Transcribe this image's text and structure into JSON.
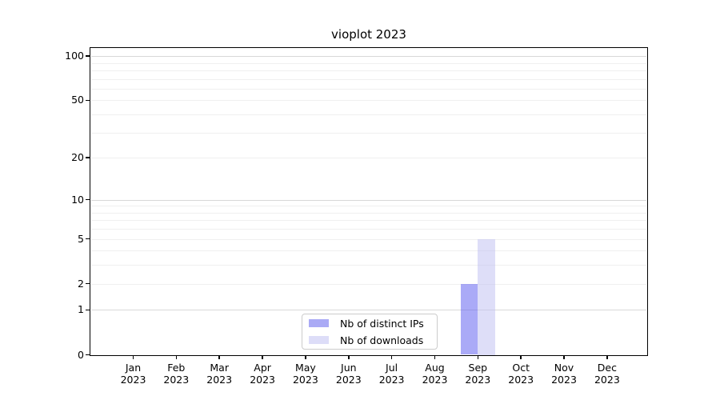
{
  "figure": {
    "title": "vioplot 2023"
  },
  "legend": {
    "items": [
      {
        "label": "Nb of distinct IPs",
        "color": "rgba(85,85,240,0.5)",
        "solid": "#aaaaf5"
      },
      {
        "label": "Nb of downloads",
        "color": "rgba(190,190,242,0.5)",
        "solid": "#ddddf8"
      }
    ]
  },
  "chart_data": {
    "type": "bar",
    "title": "vioplot 2023",
    "xlabel": "",
    "ylabel": "",
    "categories": [
      "Jan",
      "Feb",
      "Mar",
      "Apr",
      "May",
      "Jun",
      "Jul",
      "Aug",
      "Sep",
      "Oct",
      "Nov",
      "Dec"
    ],
    "year": "2023",
    "series": [
      {
        "name": "Nb of distinct IPs",
        "color": "rgba(85,85,240,0.5)",
        "values": [
          0,
          0,
          0,
          0,
          0,
          0,
          0,
          0,
          2,
          0,
          0,
          0
        ]
      },
      {
        "name": "Nb of downloads",
        "color": "rgba(190,190,242,0.5)",
        "values": [
          0,
          0,
          0,
          0,
          0,
          0,
          0,
          0,
          5,
          0,
          0,
          0
        ]
      }
    ],
    "y_scale": "log1p",
    "ylim": [
      0,
      100
    ],
    "y_ticks": [
      0,
      1,
      2,
      5,
      10,
      20,
      50,
      100
    ],
    "grid": {
      "on": true,
      "decade_values": [
        1,
        10,
        100
      ],
      "decade_color": "#d8d8d8",
      "minor_color": "#f0f0f0"
    },
    "legend_position": "bottom-center-inside"
  }
}
